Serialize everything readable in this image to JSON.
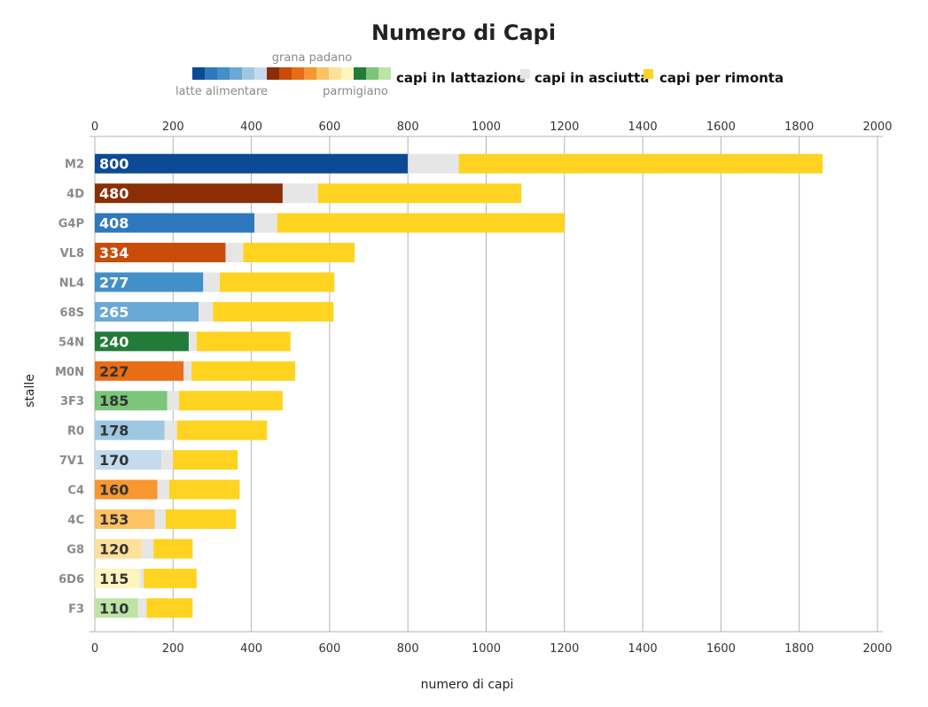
{
  "chart_data": {
    "type": "bar",
    "orientation": "horizontal",
    "stacked": true,
    "title": "Numero di Capi",
    "xlabel": "numero di capi",
    "ylabel": "stalle",
    "xlim": [
      0,
      2000
    ],
    "xticks": [
      0,
      200,
      400,
      600,
      800,
      1000,
      1200,
      1400,
      1600,
      1800,
      2000
    ],
    "grid": true,
    "categories": [
      "M2",
      "4D",
      "G4P",
      "VL8",
      "NL4",
      "68S",
      "54N",
      "M0N",
      "3F3",
      "R0",
      "7V1",
      "C4",
      "4C",
      "G8",
      "6D6",
      "F3"
    ],
    "bar_colors": [
      "#0d4a96",
      "#8b2e06",
      "#2e79bd",
      "#c94c09",
      "#4190c9",
      "#6aa8d7",
      "#227c39",
      "#e86d14",
      "#7bc67a",
      "#9ec7e2",
      "#c4dbef",
      "#f8962f",
      "#fdc263",
      "#fde09a",
      "#fef4be",
      "#bde3a5"
    ],
    "label_colors": [
      "#ffffff",
      "#ffffff",
      "#ffffff",
      "#ffffff",
      "#ffffff",
      "#ffffff",
      "#ffffff",
      "#333333",
      "#333333",
      "#333333",
      "#333333",
      "#333333",
      "#333333",
      "#333333",
      "#333333",
      "#333333"
    ],
    "series": [
      {
        "name": "capi in lattazione",
        "color": "varies",
        "values": [
          800,
          480,
          408,
          334,
          277,
          265,
          240,
          227,
          185,
          178,
          170,
          160,
          153,
          120,
          115,
          110
        ]
      },
      {
        "name": "capi in asciutta",
        "color": "#e6e6e6",
        "values": [
          130,
          90,
          58,
          45,
          42,
          37,
          20,
          20,
          30,
          32,
          30,
          30,
          28,
          30,
          10,
          22
        ]
      },
      {
        "name": "capi per rimonta",
        "color": "#ffd320",
        "values": [
          930,
          520,
          734,
          285,
          293,
          308,
          240,
          265,
          265,
          230,
          165,
          180,
          180,
          100,
          135,
          118
        ]
      }
    ],
    "legend": {
      "placement": "top",
      "lattazione_swatches": [
        "#0d4a96",
        "#2e79bd",
        "#4190c9",
        "#6aa8d7",
        "#9ec7e2",
        "#c4dbef",
        "#8b2e06",
        "#c94c09",
        "#e86d14",
        "#f8962f",
        "#fdc263",
        "#fde09a",
        "#fef4be",
        "#227c39",
        "#7bc67a",
        "#bde3a5"
      ],
      "sub_labels": {
        "latte": "latte alimentare",
        "grana": "grana padano",
        "parmigiano": "parmigiano"
      }
    }
  }
}
